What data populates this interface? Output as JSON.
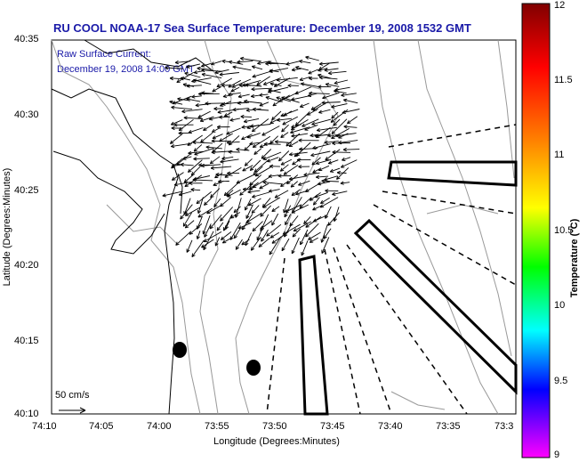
{
  "title": "RU COOL  NOAA-17  Sea Surface Temperature:  December 19, 2008 1532 GMT",
  "subtitle1": "Raw Surface Current:",
  "subtitle2": "December 19, 2008 14:00 GMT",
  "xlabel": "Longitude (Degrees:Minutes)",
  "ylabel": "Latitude (Degrees:Minutes)",
  "xticks": [
    "74:10",
    "74:05",
    "74:00",
    "73:55",
    "73:50",
    "73:45",
    "73:40",
    "73:35",
    "73:3"
  ],
  "yticks": [
    "40:35",
    "40:30",
    "40:25",
    "40:20",
    "40:15",
    "40:10"
  ],
  "scale_label": "50 cm/s",
  "colorbar": {
    "title": "Temperature (°C)",
    "ticks": [
      "12",
      "11.5",
      "11",
      "10.5",
      "10",
      "9.5",
      "9"
    ],
    "colors": [
      "#800000",
      "#ff0000",
      "#ff8000",
      "#ffff00",
      "#00ff00",
      "#00ffff",
      "#0000ff",
      "#ff00ff"
    ]
  },
  "chart_data": {
    "type": "map",
    "title": "RU COOL  NOAA-17  Sea Surface Temperature:  December 19, 2008 1532 GMT",
    "x_range": [
      "74:10",
      "73:30"
    ],
    "y_range": [
      "40:10",
      "40:35"
    ],
    "colorbar_range": [
      9,
      12
    ],
    "features": [
      "coastline",
      "bathymetry contours",
      "surface current vectors",
      "shipping lane boundaries"
    ]
  }
}
